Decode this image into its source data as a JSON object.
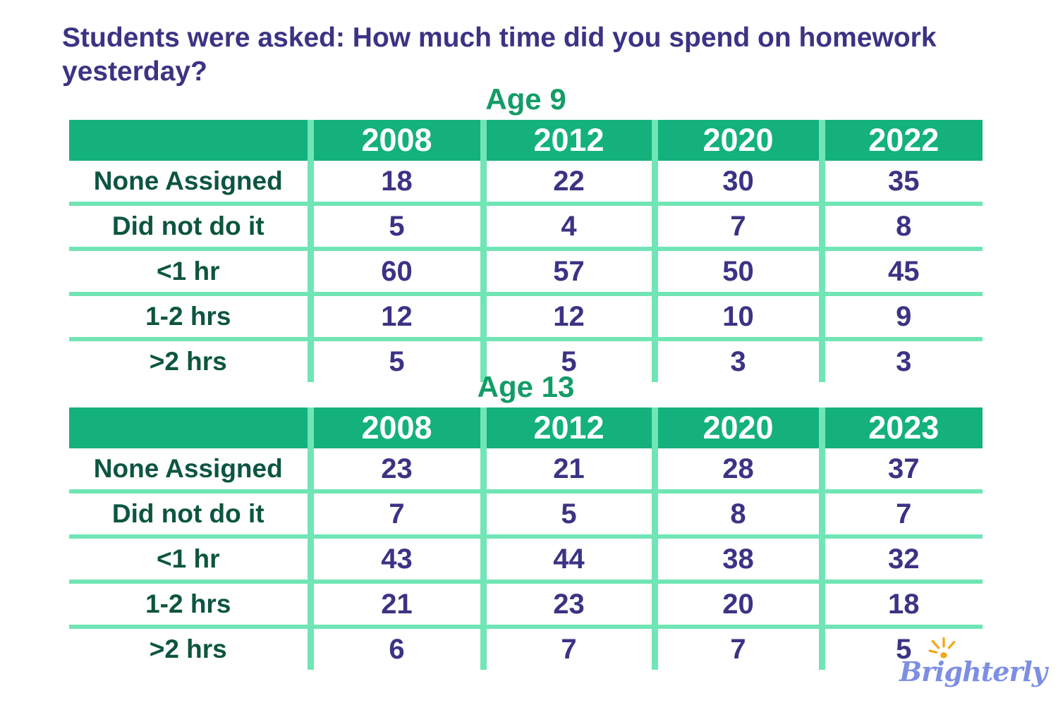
{
  "title": {
    "line1": "Students were asked: How much time did you spend on homework",
    "line2": "yesterday?"
  },
  "tables": [
    {
      "title": "Age 9",
      "columns": [
        "2008",
        "2012",
        "2020",
        "2022"
      ],
      "rows": [
        {
          "label": "None Assigned",
          "values": [
            18,
            22,
            30,
            35
          ]
        },
        {
          "label": "Did not do it",
          "values": [
            5,
            4,
            7,
            8
          ]
        },
        {
          "label": "<1 hr",
          "values": [
            60,
            57,
            50,
            45
          ]
        },
        {
          "label": "1-2 hrs",
          "values": [
            12,
            12,
            10,
            9
          ]
        },
        {
          "label": ">2 hrs",
          "values": [
            5,
            5,
            3,
            3
          ]
        }
      ]
    },
    {
      "title": "Age 13",
      "columns": [
        "2008",
        "2012",
        "2020",
        "2023"
      ],
      "rows": [
        {
          "label": "None Assigned",
          "values": [
            23,
            21,
            28,
            37
          ]
        },
        {
          "label": "Did not do it",
          "values": [
            7,
            5,
            8,
            7
          ]
        },
        {
          "label": "<1 hr",
          "values": [
            43,
            44,
            38,
            32
          ]
        },
        {
          "label": "1-2 hrs",
          "values": [
            21,
            23,
            20,
            18
          ]
        },
        {
          "label": ">2 hrs",
          "values": [
            6,
            7,
            7,
            5
          ]
        }
      ]
    }
  ],
  "logo": {
    "text": "Brighterly",
    "icon": "sun-rays-icon"
  },
  "colors": {
    "header_green": "#14b17c",
    "divider_green": "#70e5b5",
    "label_green": "#0d5540",
    "value_indigo": "#3b3384",
    "age_title_green": "#149c67",
    "logo_periwinkle": "#7d8fe2",
    "logo_sun_yellow": "#f2a81d"
  },
  "chart_data": [
    {
      "type": "table",
      "title": "Age 9",
      "columns": [
        "",
        "2008",
        "2012",
        "2020",
        "2022"
      ],
      "rows": [
        [
          "None Assigned",
          18,
          22,
          30,
          35
        ],
        [
          "Did not do it",
          5,
          4,
          7,
          8
        ],
        [
          "<1 hr",
          60,
          57,
          50,
          45
        ],
        [
          "1-2 hrs",
          12,
          12,
          10,
          9
        ],
        [
          ">2 hrs",
          5,
          5,
          3,
          3
        ]
      ]
    },
    {
      "type": "table",
      "title": "Age 13",
      "columns": [
        "",
        "2008",
        "2012",
        "2020",
        "2023"
      ],
      "rows": [
        [
          "None Assigned",
          23,
          21,
          28,
          37
        ],
        [
          "Did not do it",
          7,
          5,
          8,
          7
        ],
        [
          "<1 hr",
          43,
          44,
          38,
          32
        ],
        [
          "1-2 hrs",
          21,
          23,
          20,
          18
        ],
        [
          ">2 hrs",
          6,
          7,
          7,
          5
        ]
      ]
    }
  ]
}
